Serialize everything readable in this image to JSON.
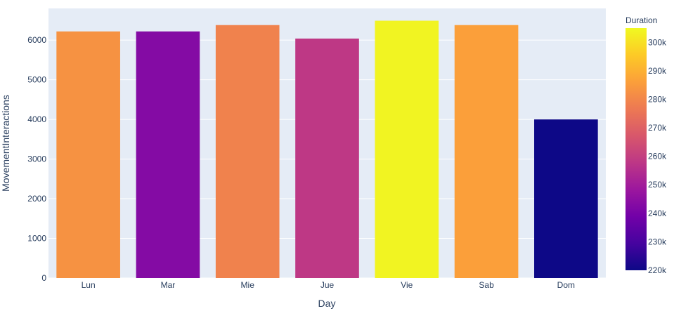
{
  "chart_data": {
    "type": "bar",
    "categories": [
      "Lun",
      "Mar",
      "Mie",
      "Jue",
      "Vie",
      "Sab",
      "Dom"
    ],
    "values": [
      6220,
      6220,
      6380,
      6040,
      6490,
      6380,
      4000
    ],
    "color_values": [
      283000,
      243000,
      279000,
      258000,
      304000,
      286000,
      220000
    ],
    "xlabel": "Day",
    "ylabel": "MovementInteractions",
    "ylim": [
      0,
      6800
    ],
    "yticks": [
      0,
      1000,
      2000,
      3000,
      4000,
      5000,
      6000
    ],
    "grid": true,
    "colorbar": {
      "title": "Duration",
      "range": [
        220000,
        305000
      ],
      "ticks": [
        220000,
        230000,
        240000,
        250000,
        260000,
        270000,
        280000,
        290000,
        300000
      ],
      "tick_labels": [
        "220k",
        "230k",
        "240k",
        "250k",
        "260k",
        "270k",
        "280k",
        "290k",
        "300k"
      ],
      "colorscale": [
        "#0d0887",
        "#46039f",
        "#7201a8",
        "#9c179e",
        "#bd3786",
        "#d8576b",
        "#ed7953",
        "#fb9f3a",
        "#fdca26",
        "#f0f921"
      ]
    },
    "plot_background": "#e5ecf6",
    "text_color": "#2a3f5f"
  }
}
